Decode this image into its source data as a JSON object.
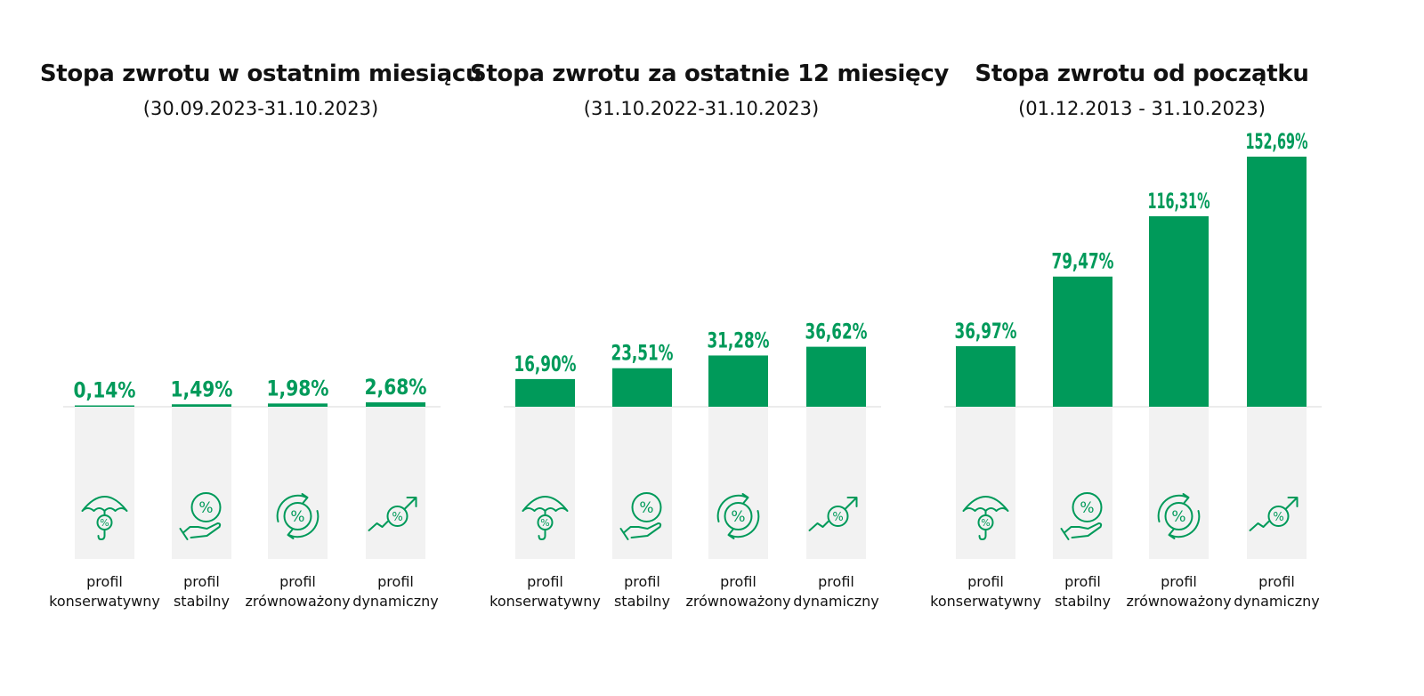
{
  "colors": {
    "bar": "#009a5a",
    "value_text": "#009a5a",
    "icon": "#009a5a",
    "track": "#f2f2f2",
    "baseline": "#e6e6e6"
  },
  "chart_data": [
    {
      "type": "bar",
      "title": "Stopa zwrotu w ostatnim miesiącu",
      "subtitle": "(30.09.2023-31.10.2023)",
      "categories": [
        "profil konserwatywny",
        "profil stabilny",
        "profil zrównoważony",
        "profil dynamiczny"
      ],
      "category_lines": [
        [
          "profil",
          "konserwatywny"
        ],
        [
          "profil",
          "stabilny"
        ],
        [
          "profil",
          "zrównoważony"
        ],
        [
          "profil",
          "dynamiczny"
        ]
      ],
      "icons": [
        "umbrella-percent-icon",
        "hand-percent-icon",
        "cycle-percent-icon",
        "growth-arrow-percent-icon"
      ],
      "values": [
        0.14,
        1.49,
        1.98,
        2.68
      ],
      "value_labels": [
        "0,14%",
        "1,49%",
        "1,98%",
        "2,68%"
      ],
      "unit": "%",
      "ylim": [
        0,
        152.69
      ],
      "grid": false,
      "legend": "none"
    },
    {
      "type": "bar",
      "title": "Stopa zwrotu za ostatnie 12 miesięcy",
      "subtitle": "(31.10.2022-31.10.2023)",
      "categories": [
        "profil konserwatywny",
        "profil stabilny",
        "profil zrównoważony",
        "profil dynamiczny"
      ],
      "category_lines": [
        [
          "profil",
          "konserwatywny"
        ],
        [
          "profil",
          "stabilny"
        ],
        [
          "profil",
          "zrównoważony"
        ],
        [
          "profil",
          "dynamiczny"
        ]
      ],
      "icons": [
        "umbrella-percent-icon",
        "hand-percent-icon",
        "cycle-percent-icon",
        "growth-arrow-percent-icon"
      ],
      "values": [
        16.9,
        23.51,
        31.28,
        36.62
      ],
      "value_labels": [
        "16,90%",
        "23,51%",
        "31,28%",
        "36,62%"
      ],
      "unit": "%",
      "ylim": [
        0,
        152.69
      ],
      "grid": false,
      "legend": "none"
    },
    {
      "type": "bar",
      "title": "Stopa zwrotu od początku",
      "subtitle": "(01.12.2013 - 31.10.2023)",
      "categories": [
        "profil konserwatywny",
        "profil stabilny",
        "profil zrównoważony",
        "profil dynamiczny"
      ],
      "category_lines": [
        [
          "profil",
          "konserwatywny"
        ],
        [
          "profil",
          "stabilny"
        ],
        [
          "profil",
          "zrównoważony"
        ],
        [
          "profil",
          "dynamiczny"
        ]
      ],
      "icons": [
        "umbrella-percent-icon",
        "hand-percent-icon",
        "cycle-percent-icon",
        "growth-arrow-percent-icon"
      ],
      "values": [
        36.97,
        79.47,
        116.31,
        152.69
      ],
      "value_labels": [
        "36,97%",
        "79,47%",
        "116,31%",
        "152,69%"
      ],
      "unit": "%",
      "ylim": [
        0,
        152.69
      ],
      "grid": false,
      "legend": "none"
    }
  ]
}
